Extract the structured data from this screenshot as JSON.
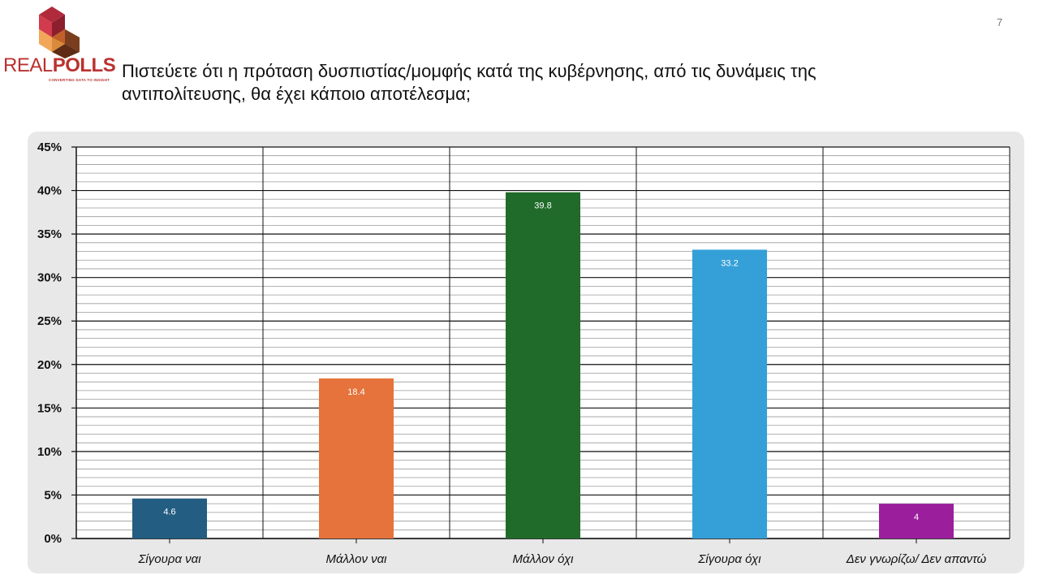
{
  "page": {
    "number": "7"
  },
  "logo": {
    "brand_light": "REAL",
    "brand_bold": "POLLS",
    "tagline": "CONVERTING DATA TO INSIGHT"
  },
  "title": "Πιστεύετε ότι η πρόταση δυσπιστίας/μομφής κατά της κυβέρνησης, από τις δυνάμεις της αντιπολίτευσης, θα έχει κάποιο αποτέλεσμα;",
  "chart_data": {
    "type": "bar",
    "categories": [
      "Σίγουρα ναι",
      "Μάλλον ναι",
      "Μάλλον όχι",
      "Σίγουρα όχι",
      "Δεν γνωρίζω/ Δεν απαντώ"
    ],
    "values": [
      4.6,
      18.4,
      39.8,
      33.2,
      4
    ],
    "data_labels": [
      "4.6",
      "18.4",
      "39.8",
      "33.2",
      "4"
    ],
    "colors": [
      "#235d82",
      "#e5733b",
      "#216b2a",
      "#35a0d8",
      "#9b1f9c"
    ],
    "ylim": [
      0,
      45
    ],
    "yticks": [
      0,
      5,
      10,
      15,
      20,
      25,
      30,
      35,
      40,
      45
    ],
    "ytick_labels": [
      "0%",
      "5%",
      "10%",
      "15%",
      "20%",
      "25%",
      "30%",
      "35%",
      "40%",
      "45%"
    ],
    "minor_step": 1,
    "grid": true,
    "legend": "none",
    "xlabel": "",
    "ylabel": ""
  }
}
